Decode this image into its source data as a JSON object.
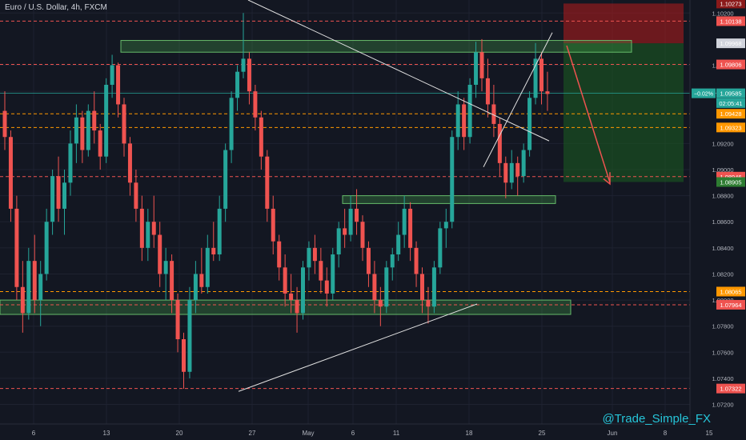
{
  "header": {
    "title": "Euro / U.S. Dollar, 4h, FXCM"
  },
  "watermark": "@Trade_Simple_FX",
  "colors": {
    "background": "#131722",
    "bull": "#26a69a",
    "bear": "#ef5350",
    "zone_fill": "rgba(76,175,80,0.28)",
    "zone_stroke": "#66bb6a",
    "stop_zone": "rgba(183,28,28,0.55)",
    "target_zone": "rgba(27,94,32,0.55)",
    "dashed_red": "#ef5350",
    "dashed_orange": "#ff9800"
  },
  "chart_data": {
    "type": "candlestick",
    "symbol": "EURUSD",
    "timeframe": "4h",
    "ylim": [
      1.0705,
      1.103
    ],
    "x_ticks": [
      "6",
      "13",
      "20",
      "27",
      "May",
      "6",
      "11",
      "18",
      "25",
      "Jun",
      "8",
      "15"
    ],
    "y_ticks": [
      "1.10200",
      "1.09800",
      "1.09600",
      "1.09200",
      "1.09000",
      "1.08800",
      "1.08600",
      "1.08400",
      "1.08200",
      "1.08000",
      "1.07800",
      "1.07600",
      "1.07400",
      "1.07200"
    ],
    "price_labels": [
      {
        "text": "1.10273",
        "value": 1.10273,
        "color": "#8b1a1a"
      },
      {
        "text": "1.10138",
        "value": 1.10138,
        "color": "#ef5350"
      },
      {
        "text": "1.09968",
        "value": 1.09968,
        "color": "#d1d4dc"
      },
      {
        "text": "1.09806",
        "value": 1.09806,
        "color": "#ef5350"
      },
      {
        "text": "1.09585",
        "value": 1.09585,
        "color": "#26a69a"
      },
      {
        "text": "02:05:41",
        "value": 1.0951,
        "color": "#26a69a"
      },
      {
        "text": "1.09428",
        "value": 1.09428,
        "color": "#ff9800"
      },
      {
        "text": "1.09323",
        "value": 1.09323,
        "color": "#ff9800"
      },
      {
        "text": "1.08946",
        "value": 1.08946,
        "color": "#ef5350"
      },
      {
        "text": "1.08905",
        "value": 1.08905,
        "color": "#2e7d32"
      },
      {
        "text": "1.08065",
        "value": 1.08065,
        "color": "#ff9800"
      },
      {
        "text": "1.07964",
        "value": 1.07964,
        "color": "#ef5350"
      },
      {
        "text": "1.07322",
        "value": 1.07322,
        "color": "#ef5350"
      }
    ],
    "current_change": "−0.02%",
    "horizontal_levels": [
      {
        "value": 1.10138,
        "style": "dashed",
        "color": "red"
      },
      {
        "value": 1.09806,
        "style": "dashed",
        "color": "red"
      },
      {
        "value": 1.09428,
        "style": "dashed",
        "color": "orange"
      },
      {
        "value": 1.09323,
        "style": "dashed",
        "color": "orange"
      },
      {
        "value": 1.08946,
        "style": "dashed",
        "color": "red"
      },
      {
        "value": 1.08065,
        "style": "dashed",
        "color": "orange"
      },
      {
        "value": 1.07964,
        "style": "dashed",
        "color": "red"
      },
      {
        "value": 1.07322,
        "style": "dashed",
        "color": "red"
      }
    ],
    "zones": [
      {
        "name": "resistance-zone",
        "from": 1.099,
        "to": 1.0999
      },
      {
        "name": "mid-zone",
        "from": 1.0874,
        "to": 1.088
      },
      {
        "name": "support-zone",
        "from": 1.0789,
        "to": 1.08
      }
    ],
    "position": {
      "entry": 1.09968,
      "stop": 1.10273,
      "target": 1.08905,
      "direction": "short"
    },
    "ohlc": [
      {
        "o": 1.0945,
        "h": 1.096,
        "l": 1.0915,
        "c": 1.0925
      },
      {
        "o": 1.0925,
        "h": 1.093,
        "l": 1.086,
        "c": 1.087
      },
      {
        "o": 1.087,
        "h": 1.088,
        "l": 1.08,
        "c": 1.081
      },
      {
        "o": 1.081,
        "h": 1.083,
        "l": 1.0775,
        "c": 1.079
      },
      {
        "o": 1.079,
        "h": 1.084,
        "l": 1.0785,
        "c": 1.083
      },
      {
        "o": 1.083,
        "h": 1.085,
        "l": 1.079,
        "c": 1.08
      },
      {
        "o": 1.08,
        "h": 1.083,
        "l": 1.078,
        "c": 1.082
      },
      {
        "o": 1.082,
        "h": 1.087,
        "l": 1.0815,
        "c": 1.086
      },
      {
        "o": 1.086,
        "h": 1.09,
        "l": 1.085,
        "c": 1.0895
      },
      {
        "o": 1.0895,
        "h": 1.091,
        "l": 1.086,
        "c": 1.087
      },
      {
        "o": 1.087,
        "h": 1.09,
        "l": 1.085,
        "c": 1.089
      },
      {
        "o": 1.089,
        "h": 1.093,
        "l": 1.088,
        "c": 1.092
      },
      {
        "o": 1.092,
        "h": 1.095,
        "l": 1.0905,
        "c": 1.094
      },
      {
        "o": 1.094,
        "h": 1.0945,
        "l": 1.0905,
        "c": 1.0915
      },
      {
        "o": 1.0915,
        "h": 1.095,
        "l": 1.091,
        "c": 1.0945
      },
      {
        "o": 1.0945,
        "h": 1.096,
        "l": 1.092,
        "c": 1.093
      },
      {
        "o": 1.093,
        "h": 1.0935,
        "l": 1.09,
        "c": 1.091
      },
      {
        "o": 1.091,
        "h": 1.097,
        "l": 1.0905,
        "c": 1.0965
      },
      {
        "o": 1.0965,
        "h": 1.0988,
        "l": 1.0955,
        "c": 1.098
      },
      {
        "o": 1.098,
        "h": 1.0982,
        "l": 1.094,
        "c": 1.095
      },
      {
        "o": 1.095,
        "h": 1.0955,
        "l": 1.091,
        "c": 1.092
      },
      {
        "o": 1.092,
        "h": 1.0925,
        "l": 1.088,
        "c": 1.089
      },
      {
        "o": 1.089,
        "h": 1.09,
        "l": 1.086,
        "c": 1.087
      },
      {
        "o": 1.087,
        "h": 1.088,
        "l": 1.083,
        "c": 1.084
      },
      {
        "o": 1.084,
        "h": 1.087,
        "l": 1.083,
        "c": 1.086
      },
      {
        "o": 1.086,
        "h": 1.088,
        "l": 1.084,
        "c": 1.085
      },
      {
        "o": 1.085,
        "h": 1.086,
        "l": 1.081,
        "c": 1.082
      },
      {
        "o": 1.082,
        "h": 1.084,
        "l": 1.08,
        "c": 1.083
      },
      {
        "o": 1.083,
        "h": 1.0835,
        "l": 1.079,
        "c": 1.08
      },
      {
        "o": 1.08,
        "h": 1.0805,
        "l": 1.076,
        "c": 1.077
      },
      {
        "o": 1.077,
        "h": 1.0775,
        "l": 1.0732,
        "c": 1.0745
      },
      {
        "o": 1.0745,
        "h": 1.081,
        "l": 1.074,
        "c": 1.08
      },
      {
        "o": 1.08,
        "h": 1.083,
        "l": 1.079,
        "c": 1.082
      },
      {
        "o": 1.082,
        "h": 1.084,
        "l": 1.0805,
        "c": 1.081
      },
      {
        "o": 1.081,
        "h": 1.085,
        "l": 1.0805,
        "c": 1.084
      },
      {
        "o": 1.084,
        "h": 1.086,
        "l": 1.083,
        "c": 1.0835
      },
      {
        "o": 1.0835,
        "h": 1.088,
        "l": 1.083,
        "c": 1.087
      },
      {
        "o": 1.087,
        "h": 1.092,
        "l": 1.086,
        "c": 1.0915
      },
      {
        "o": 1.0915,
        "h": 1.096,
        "l": 1.0905,
        "c": 1.0955
      },
      {
        "o": 1.0955,
        "h": 1.098,
        "l": 1.0945,
        "c": 1.0975
      },
      {
        "o": 1.0975,
        "h": 1.102,
        "l": 1.097,
        "c": 1.0985
      },
      {
        "o": 1.0985,
        "h": 1.099,
        "l": 1.095,
        "c": 1.096
      },
      {
        "o": 1.096,
        "h": 1.0965,
        "l": 1.093,
        "c": 1.094
      },
      {
        "o": 1.094,
        "h": 1.0945,
        "l": 1.09,
        "c": 1.091
      },
      {
        "o": 1.091,
        "h": 1.0915,
        "l": 1.086,
        "c": 1.087
      },
      {
        "o": 1.087,
        "h": 1.088,
        "l": 1.0835,
        "c": 1.0845
      },
      {
        "o": 1.0845,
        "h": 1.085,
        "l": 1.0815,
        "c": 1.0825
      },
      {
        "o": 1.0825,
        "h": 1.0835,
        "l": 1.0795,
        "c": 1.0805
      },
      {
        "o": 1.0805,
        "h": 1.082,
        "l": 1.079,
        "c": 1.08
      },
      {
        "o": 1.08,
        "h": 1.081,
        "l": 1.0775,
        "c": 1.079
      },
      {
        "o": 1.079,
        "h": 1.083,
        "l": 1.0785,
        "c": 1.0825
      },
      {
        "o": 1.0825,
        "h": 1.0845,
        "l": 1.0815,
        "c": 1.084
      },
      {
        "o": 1.084,
        "h": 1.085,
        "l": 1.082,
        "c": 1.083
      },
      {
        "o": 1.083,
        "h": 1.084,
        "l": 1.0805,
        "c": 1.0815
      },
      {
        "o": 1.0815,
        "h": 1.0825,
        "l": 1.0795,
        "c": 1.0805
      },
      {
        "o": 1.0805,
        "h": 1.084,
        "l": 1.08,
        "c": 1.0835
      },
      {
        "o": 1.0835,
        "h": 1.086,
        "l": 1.0825,
        "c": 1.0855
      },
      {
        "o": 1.0855,
        "h": 1.087,
        "l": 1.084,
        "c": 1.085
      },
      {
        "o": 1.085,
        "h": 1.088,
        "l": 1.0845,
        "c": 1.087
      },
      {
        "o": 1.087,
        "h": 1.0885,
        "l": 1.085,
        "c": 1.086
      },
      {
        "o": 1.086,
        "h": 1.0865,
        "l": 1.083,
        "c": 1.084
      },
      {
        "o": 1.084,
        "h": 1.0845,
        "l": 1.081,
        "c": 1.082
      },
      {
        "o": 1.082,
        "h": 1.083,
        "l": 1.079,
        "c": 1.08
      },
      {
        "o": 1.08,
        "h": 1.081,
        "l": 1.078,
        "c": 1.0795
      },
      {
        "o": 1.0795,
        "h": 1.083,
        "l": 1.079,
        "c": 1.0825
      },
      {
        "o": 1.0825,
        "h": 1.084,
        "l": 1.0815,
        "c": 1.0835
      },
      {
        "o": 1.0835,
        "h": 1.086,
        "l": 1.083,
        "c": 1.085
      },
      {
        "o": 1.085,
        "h": 1.088,
        "l": 1.084,
        "c": 1.087
      },
      {
        "o": 1.087,
        "h": 1.0875,
        "l": 1.083,
        "c": 1.084
      },
      {
        "o": 1.084,
        "h": 1.0845,
        "l": 1.081,
        "c": 1.082
      },
      {
        "o": 1.082,
        "h": 1.0825,
        "l": 1.079,
        "c": 1.08
      },
      {
        "o": 1.08,
        "h": 1.081,
        "l": 1.0782,
        "c": 1.0795
      },
      {
        "o": 1.0795,
        "h": 1.083,
        "l": 1.079,
        "c": 1.0825
      },
      {
        "o": 1.0825,
        "h": 1.086,
        "l": 1.082,
        "c": 1.0855
      },
      {
        "o": 1.0855,
        "h": 1.087,
        "l": 1.084,
        "c": 1.086
      },
      {
        "o": 1.086,
        "h": 1.093,
        "l": 1.0855,
        "c": 1.0925
      },
      {
        "o": 1.0925,
        "h": 1.096,
        "l": 1.0915,
        "c": 1.095
      },
      {
        "o": 1.095,
        "h": 1.0955,
        "l": 1.0915,
        "c": 1.0925
      },
      {
        "o": 1.0925,
        "h": 1.097,
        "l": 1.092,
        "c": 1.0965
      },
      {
        "o": 1.0965,
        "h": 1.0998,
        "l": 1.0955,
        "c": 1.099
      },
      {
        "o": 1.099,
        "h": 1.1,
        "l": 1.096,
        "c": 1.097
      },
      {
        "o": 1.097,
        "h": 1.0985,
        "l": 1.094,
        "c": 1.095
      },
      {
        "o": 1.095,
        "h": 1.0965,
        "l": 1.0925,
        "c": 1.0935
      },
      {
        "o": 1.0935,
        "h": 1.094,
        "l": 1.0895,
        "c": 1.0905
      },
      {
        "o": 1.0905,
        "h": 1.091,
        "l": 1.0878,
        "c": 1.089
      },
      {
        "o": 1.089,
        "h": 1.0915,
        "l": 1.0885,
        "c": 1.0905
      },
      {
        "o": 1.0905,
        "h": 1.091,
        "l": 1.088,
        "c": 1.0895
      },
      {
        "o": 1.0895,
        "h": 1.092,
        "l": 1.089,
        "c": 1.0915
      },
      {
        "o": 1.0915,
        "h": 1.096,
        "l": 1.091,
        "c": 1.0955
      },
      {
        "o": 1.0955,
        "h": 1.0997,
        "l": 1.095,
        "c": 1.0985
      },
      {
        "o": 1.0985,
        "h": 1.099,
        "l": 1.095,
        "c": 1.096
      },
      {
        "o": 1.096,
        "h": 1.0975,
        "l": 1.0945,
        "c": 1.0958
      }
    ]
  }
}
